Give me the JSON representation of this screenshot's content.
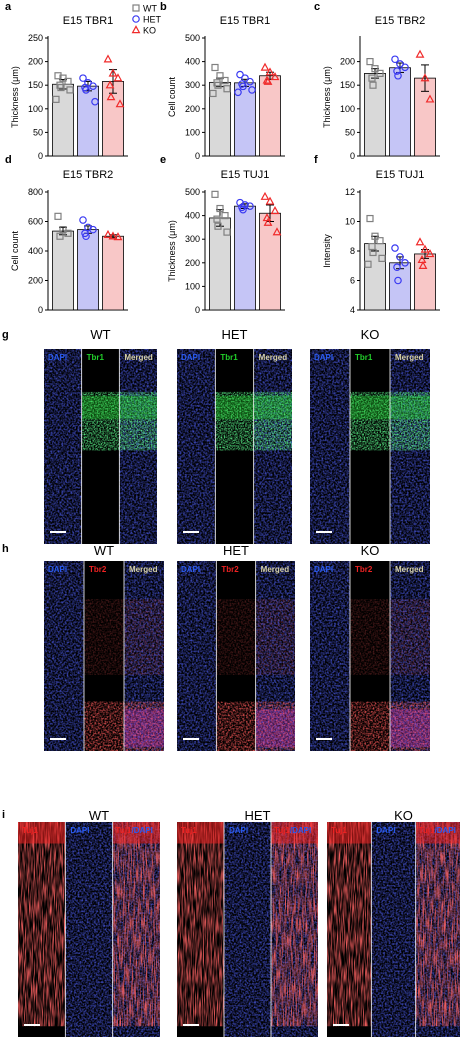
{
  "colors": {
    "wt": "#808080",
    "wt_fill": "#d9d9d9",
    "het": "#3a3af2",
    "het_fill": "#c5c5f6",
    "ko": "#f02a2a",
    "ko_fill": "#f8c7c7",
    "dapi": "#2a5bf0",
    "tbr1": "#22d02a",
    "tbr2": "#ee2222",
    "tuj1": "#ee2222",
    "merged": "#d8d2a8"
  },
  "legend": {
    "wt": "WT",
    "het": "HET",
    "ko": "KO"
  },
  "chart_data": [
    {
      "panel": "a",
      "type": "bar",
      "title": "E15 TBR1",
      "ylabel": "Thickness (μm)",
      "categories": [
        "WT",
        "HET",
        "KO"
      ],
      "ylim": [
        0,
        250
      ],
      "yticks": [
        0,
        50,
        100,
        150,
        200,
        250
      ],
      "values": [
        152,
        148,
        158
      ],
      "sem": [
        10,
        10,
        25
      ],
      "points": [
        [
          170,
          165,
          158,
          150,
          145,
          140,
          120
        ],
        [
          165,
          155,
          148,
          145,
          140,
          115
        ],
        [
          205,
          175,
          165,
          150,
          125,
          110
        ]
      ]
    },
    {
      "panel": "b",
      "type": "bar",
      "title": "E15 TBR1",
      "ylabel": "Cell count",
      "categories": [
        "WT",
        "HET",
        "KO"
      ],
      "ylim": [
        0,
        500
      ],
      "yticks": [
        0,
        100,
        200,
        300,
        400,
        500
      ],
      "values": [
        312,
        310,
        340
      ],
      "sem": [
        18,
        15,
        15
      ],
      "points": [
        [
          375,
          340,
          320,
          310,
          300,
          285,
          265
        ],
        [
          345,
          330,
          315,
          305,
          295,
          280,
          270
        ],
        [
          375,
          355,
          335,
          320,
          315
        ]
      ]
    },
    {
      "panel": "c",
      "type": "bar",
      "title": "E15 TBR2",
      "ylabel": "Thickness (μm)",
      "categories": [
        "WT",
        "HET",
        "KO"
      ],
      "ylim": [
        0,
        250
      ],
      "yticks": [
        0,
        50,
        100,
        150,
        200
      ],
      "values": [
        175,
        187,
        165
      ],
      "sem": [
        10,
        10,
        28
      ],
      "points": [
        [
          200,
          185,
          175,
          165,
          150
        ],
        [
          205,
          195,
          188,
          180,
          170
        ],
        [
          215,
          165,
          120
        ]
      ]
    },
    {
      "panel": "d",
      "type": "bar",
      "title": "E15 TBR2",
      "ylabel": "Cell count",
      "categories": [
        "WT",
        "HET",
        "KO"
      ],
      "ylim": [
        0,
        800
      ],
      "yticks": [
        0,
        200,
        400,
        600,
        800
      ],
      "values": [
        535,
        545,
        500
      ],
      "sem": [
        25,
        25,
        10
      ],
      "points": [
        [
          635,
          545,
          520,
          500
        ],
        [
          610,
          560,
          545,
          520,
          500
        ],
        [
          510,
          500,
          495
        ]
      ]
    },
    {
      "panel": "e",
      "type": "bar",
      "title": "E15 TUJ1",
      "ylabel": "Thickness (μm)",
      "categories": [
        "WT",
        "HET",
        "KO"
      ],
      "ylim": [
        0,
        500
      ],
      "yticks": [
        0,
        100,
        200,
        300,
        400,
        500
      ],
      "values": [
        390,
        440,
        410
      ],
      "sem": [
        35,
        10,
        35
      ],
      "points": [
        [
          490,
          430,
          400,
          385,
          355,
          330
        ],
        [
          455,
          445,
          440,
          435,
          425
        ],
        [
          480,
          460,
          420,
          390,
          370,
          330
        ]
      ]
    },
    {
      "panel": "f",
      "type": "bar",
      "title": "E15 TUJ1",
      "ylabel": "Intensity",
      "categories": [
        "WT",
        "HET",
        "KO"
      ],
      "ylim": [
        4,
        12
      ],
      "yticks": [
        4,
        6,
        8,
        10,
        12
      ],
      "values": [
        8.5,
        7.2,
        7.8
      ],
      "sem": [
        0.5,
        0.4,
        0.3
      ],
      "points": [
        [
          10.2,
          9.0,
          8.7,
          8.3,
          7.9,
          7.5,
          7.1
        ],
        [
          8.2,
          7.6,
          7.2,
          6.9,
          6.0
        ],
        [
          8.6,
          8.1,
          7.8,
          7.4,
          7.0
        ]
      ]
    }
  ],
  "micrographs": [
    {
      "letter": "g",
      "groups": [
        {
          "label": "WT",
          "subpanels": [
            [
              "DAPI",
              "dapi"
            ],
            [
              "Tbr1",
              "tbr1"
            ],
            [
              "Merged",
              "merged"
            ]
          ]
        },
        {
          "label": "HET",
          "subpanels": [
            [
              "DAPI",
              "dapi"
            ],
            [
              "Tbr1",
              "tbr1"
            ],
            [
              "Merged",
              "merged"
            ]
          ]
        },
        {
          "label": "KO",
          "subpanels": [
            [
              "DAPI",
              "dapi"
            ],
            [
              "Tbr1",
              "tbr1"
            ],
            [
              "Merged",
              "merged"
            ]
          ]
        }
      ]
    },
    {
      "letter": "h",
      "groups": [
        {
          "label": "WT",
          "subpanels": [
            [
              "DAPI",
              "dapi"
            ],
            [
              "Tbr2",
              "tbr2"
            ],
            [
              "Merged",
              "merged"
            ]
          ]
        },
        {
          "label": "HET",
          "subpanels": [
            [
              "DAPI",
              "dapi"
            ],
            [
              "Tbr2",
              "tbr2"
            ],
            [
              "Merged",
              "merged"
            ]
          ]
        },
        {
          "label": "KO",
          "subpanels": [
            [
              "DAPI",
              "dapi"
            ],
            [
              "Tbr2",
              "tbr2"
            ],
            [
              "Merged",
              "merged"
            ]
          ]
        }
      ]
    },
    {
      "letter": "i",
      "groups": [
        {
          "label": "WT",
          "subpanels": [
            [
              "Tuj1",
              "tuj1"
            ],
            [
              "DAPI",
              "dapi"
            ],
            [
              "Tuj1/DAPI",
              "dapi"
            ]
          ]
        },
        {
          "label": "HET",
          "subpanels": [
            [
              "Tuj1",
              "tuj1"
            ],
            [
              "DAPI",
              "dapi"
            ],
            [
              "Tuj1/DAPI",
              "dapi"
            ]
          ]
        },
        {
          "label": "KO",
          "subpanels": [
            [
              "Tuj1",
              "tuj1"
            ],
            [
              "DAPI",
              "dapi"
            ],
            [
              "Tuj1/DAPI",
              "dapi"
            ]
          ]
        }
      ]
    }
  ]
}
